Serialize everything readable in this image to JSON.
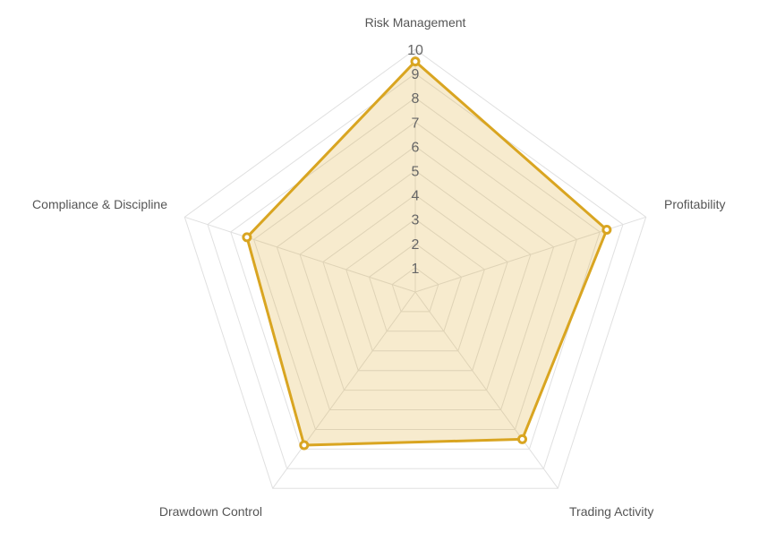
{
  "chart_data": {
    "type": "radar",
    "title": "",
    "axes": [
      "Risk Management",
      "Profitability",
      "Trading Activity",
      "Drawdown Control",
      "Compliance & Discipline"
    ],
    "r_range": [
      0,
      10
    ],
    "ticks": [
      "1",
      "2",
      "3",
      "4",
      "5",
      "6",
      "7",
      "8",
      "9",
      "10"
    ],
    "series": [
      {
        "values": [
          9.5,
          8.3,
          7.5,
          7.8,
          7.3
        ]
      }
    ],
    "grid": true,
    "legend": "none",
    "colors": {
      "line": "#d9a521",
      "fill": "#d9a521",
      "grid": "#e0e0e0",
      "tick_text": "#666666",
      "axis_text": "#555555"
    }
  }
}
